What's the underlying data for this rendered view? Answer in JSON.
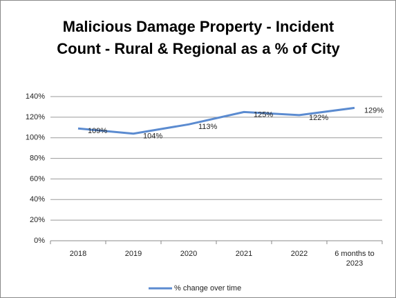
{
  "chart_data": {
    "type": "line",
    "title": "Malicious Damage Property - Incident Count - Rural & Regional as a % of City",
    "categories": [
      "2018",
      "2019",
      "2020",
      "2021",
      "2022",
      "6 months to 2023"
    ],
    "series": [
      {
        "name": "% change over time",
        "color": "#5b8bd0",
        "values": [
          109,
          104,
          113,
          125,
          122,
          129
        ],
        "value_labels": [
          "109%",
          "104%",
          "113%",
          "125%",
          "122%",
          "129%"
        ]
      }
    ],
    "ylim": [
      0,
      140
    ],
    "yticks": [
      {
        "value": 0,
        "label": "0%"
      },
      {
        "value": 20,
        "label": "20%"
      },
      {
        "value": 40,
        "label": "40%"
      },
      {
        "value": 60,
        "label": "60%"
      },
      {
        "value": 80,
        "label": "80%"
      },
      {
        "value": 100,
        "label": "100%"
      },
      {
        "value": 120,
        "label": "120%"
      },
      {
        "value": 140,
        "label": "140%"
      }
    ],
    "grid": true,
    "legend": "bottom"
  }
}
